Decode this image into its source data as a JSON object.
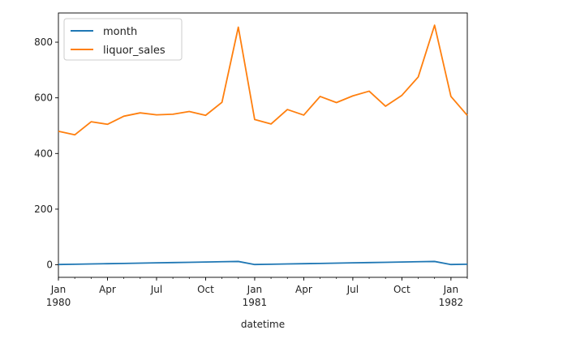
{
  "chart_data": {
    "type": "line",
    "title": "",
    "xlabel": "datetime",
    "ylabel": "",
    "x": [
      "1980-01",
      "1980-02",
      "1980-03",
      "1980-04",
      "1980-05",
      "1980-06",
      "1980-07",
      "1980-08",
      "1980-09",
      "1980-10",
      "1980-11",
      "1980-12",
      "1981-01",
      "1981-02",
      "1981-03",
      "1981-04",
      "1981-05",
      "1981-06",
      "1981-07",
      "1981-08",
      "1981-09",
      "1981-10",
      "1981-11",
      "1981-12",
      "1982-01",
      "1982-02"
    ],
    "xlim": [
      "1980-01",
      "1982-02"
    ],
    "ylim": [
      -45,
      905
    ],
    "grid": false,
    "legend_position": "top-left",
    "x_ticks": [
      {
        "x": "1980-01",
        "label": "Jan",
        "sublabel": "1980"
      },
      {
        "x": "1980-04",
        "label": "Apr",
        "sublabel": ""
      },
      {
        "x": "1980-07",
        "label": "Jul",
        "sublabel": ""
      },
      {
        "x": "1980-10",
        "label": "Oct",
        "sublabel": ""
      },
      {
        "x": "1981-01",
        "label": "Jan",
        "sublabel": "1981"
      },
      {
        "x": "1981-04",
        "label": "Apr",
        "sublabel": ""
      },
      {
        "x": "1981-07",
        "label": "Jul",
        "sublabel": ""
      },
      {
        "x": "1981-10",
        "label": "Oct",
        "sublabel": ""
      },
      {
        "x": "1982-01",
        "label": "Jan",
        "sublabel": "1982"
      }
    ],
    "y_ticks": [
      0,
      200,
      400,
      600,
      800
    ],
    "series": [
      {
        "name": "month",
        "color": "#1f77b4",
        "values": [
          1,
          2,
          3,
          4,
          5,
          6,
          7,
          8,
          9,
          10,
          11,
          12,
          1,
          2,
          3,
          4,
          5,
          6,
          7,
          8,
          9,
          10,
          11,
          12,
          1,
          2
        ]
      },
      {
        "name": "liquor_sales",
        "color": "#ff7f0e",
        "values": [
          480,
          467,
          514,
          505,
          534,
          546,
          539,
          541,
          551,
          537,
          584,
          854,
          522,
          506,
          558,
          538,
          605,
          583,
          607,
          624,
          570,
          609,
          675,
          861,
          605,
          537
        ]
      }
    ]
  }
}
